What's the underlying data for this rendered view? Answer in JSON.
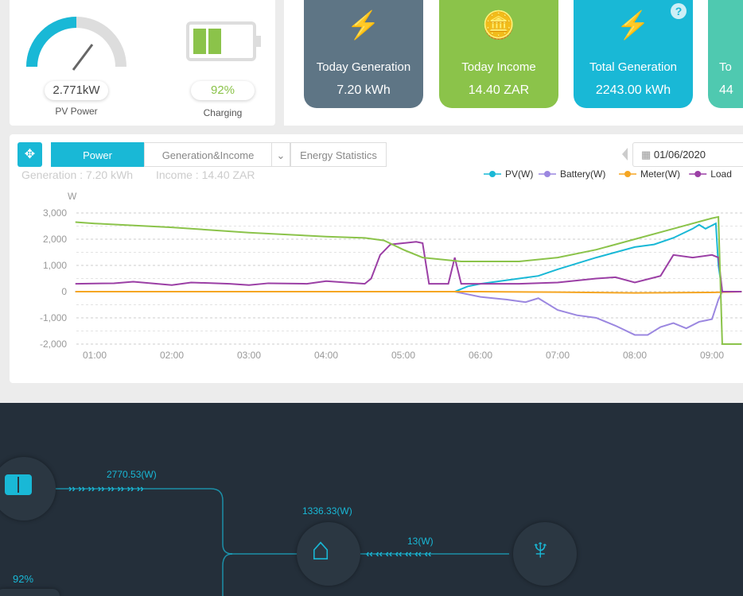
{
  "pv_panel": {
    "value": "2.771kW",
    "label": "PV Power",
    "gauge_fraction": 0.7
  },
  "battery_panel": {
    "value": "92%",
    "label": "Charging",
    "level_fraction": 0.92
  },
  "cards": [
    {
      "icon": "lightning-icon",
      "title": "Today Generation",
      "value": "7.20 kWh",
      "color": "#5e7585"
    },
    {
      "icon": "coins-icon",
      "title": "Today Income",
      "value": "14.40 ZAR",
      "color": "#8bc34a"
    },
    {
      "icon": "lightning-icon",
      "title": "Total Generation",
      "value": "2243.00 kWh",
      "color": "#19b8d6"
    },
    {
      "icon": "partial",
      "title": "To",
      "value": "44",
      "color": "#4fc9b0"
    }
  ],
  "chart_panel": {
    "tabs": [
      "Power",
      "Generation&Income",
      "Energy Statistics"
    ],
    "active_tab": "Power",
    "date": "01/06/2020",
    "generation": "Generation : 7.20 kWh",
    "income": "Income : 14.40 ZAR"
  },
  "chart_data": {
    "type": "line",
    "ylabel": "W",
    "ylim": [
      -2000,
      3000
    ],
    "yticks": [
      "3,000",
      "2,000",
      "1,000",
      "0",
      "-1,000",
      "-2,000"
    ],
    "xticks": [
      "01:00",
      "02:00",
      "03:00",
      "04:00",
      "05:00",
      "06:00",
      "07:00",
      "08:00",
      "09:00"
    ],
    "grid": true,
    "legend_placement": "top-right",
    "series": [
      {
        "name": "PV(W)",
        "color": "#19b8d6",
        "points": [
          [
            "00:45",
            0
          ],
          [
            "05:40",
            0
          ],
          [
            "05:50",
            200
          ],
          [
            "06:00",
            300
          ],
          [
            "06:30",
            500
          ],
          [
            "06:45",
            600
          ],
          [
            "07:00",
            850
          ],
          [
            "07:30",
            1300
          ],
          [
            "08:00",
            1700
          ],
          [
            "08:15",
            1800
          ],
          [
            "08:30",
            2050
          ],
          [
            "08:45",
            2400
          ],
          [
            "08:50",
            2550
          ],
          [
            "08:55",
            2400
          ],
          [
            "09:03",
            2600
          ],
          [
            "09:05",
            1000
          ],
          [
            "09:08",
            0
          ],
          [
            "09:23",
            0
          ]
        ]
      },
      {
        "name": "Battery(W)",
        "color": "#9b87e0",
        "points": [
          [
            "00:45",
            0
          ],
          [
            "05:40",
            0
          ],
          [
            "05:50",
            -100
          ],
          [
            "06:00",
            -200
          ],
          [
            "06:20",
            -300
          ],
          [
            "06:35",
            -400
          ],
          [
            "06:45",
            -250
          ],
          [
            "07:00",
            -700
          ],
          [
            "07:15",
            -900
          ],
          [
            "07:30",
            -1000
          ],
          [
            "07:45",
            -1300
          ],
          [
            "08:00",
            -1650
          ],
          [
            "08:10",
            -1650
          ],
          [
            "08:20",
            -1350
          ],
          [
            "08:30",
            -1200
          ],
          [
            "08:40",
            -1400
          ],
          [
            "08:50",
            -1150
          ],
          [
            "09:00",
            -1050
          ],
          [
            "09:05",
            -300
          ],
          [
            "09:08",
            0
          ],
          [
            "09:23",
            0
          ]
        ]
      },
      {
        "name": "Meter(W)",
        "color": "#f5a623",
        "points": [
          [
            "00:45",
            0
          ],
          [
            "06:00",
            0
          ],
          [
            "07:00",
            -20
          ],
          [
            "08:00",
            -50
          ],
          [
            "09:00",
            -30
          ],
          [
            "09:23",
            0
          ]
        ]
      },
      {
        "name": "Load",
        "color": "#9b3fa5",
        "points": [
          [
            "00:45",
            300
          ],
          [
            "01:15",
            320
          ],
          [
            "01:30",
            380
          ],
          [
            "02:00",
            250
          ],
          [
            "02:15",
            350
          ],
          [
            "02:45",
            300
          ],
          [
            "03:00",
            250
          ],
          [
            "03:15",
            320
          ],
          [
            "03:45",
            300
          ],
          [
            "04:00",
            400
          ],
          [
            "04:30",
            300
          ],
          [
            "04:35",
            500
          ],
          [
            "04:42",
            1400
          ],
          [
            "04:50",
            1800
          ],
          [
            "05:10",
            1900
          ],
          [
            "05:15",
            1850
          ],
          [
            "05:20",
            300
          ],
          [
            "05:35",
            300
          ],
          [
            "05:40",
            1300
          ],
          [
            "05:45",
            300
          ],
          [
            "06:00",
            300
          ],
          [
            "06:30",
            300
          ],
          [
            "07:00",
            350
          ],
          [
            "07:30",
            500
          ],
          [
            "07:45",
            550
          ],
          [
            "08:00",
            350
          ],
          [
            "08:20",
            600
          ],
          [
            "08:30",
            1400
          ],
          [
            "08:45",
            1300
          ],
          [
            "09:00",
            1400
          ],
          [
            "09:05",
            1300
          ],
          [
            "09:08",
            0
          ],
          [
            "09:23",
            0
          ]
        ]
      },
      {
        "color": "#8bc34a",
        "points": [
          [
            "00:45",
            2650
          ],
          [
            "01:00",
            2600
          ],
          [
            "02:00",
            2450
          ],
          [
            "03:00",
            2250
          ],
          [
            "04:00",
            2100
          ],
          [
            "04:30",
            2050
          ],
          [
            "04:45",
            1950
          ],
          [
            "05:00",
            1600
          ],
          [
            "05:15",
            1300
          ],
          [
            "05:45",
            1150
          ],
          [
            "06:30",
            1150
          ],
          [
            "07:00",
            1300
          ],
          [
            "07:30",
            1600
          ],
          [
            "08:00",
            2000
          ],
          [
            "08:30",
            2400
          ],
          [
            "09:00",
            2800
          ],
          [
            "09:05",
            2850
          ],
          [
            "09:08",
            -2000
          ],
          [
            "09:23",
            -2000
          ]
        ]
      }
    ]
  },
  "flow": {
    "pv_power": "2770.53(W)",
    "home_power": "1336.33(W)",
    "grid_power": "13(W)",
    "battery_soc": "92%"
  }
}
